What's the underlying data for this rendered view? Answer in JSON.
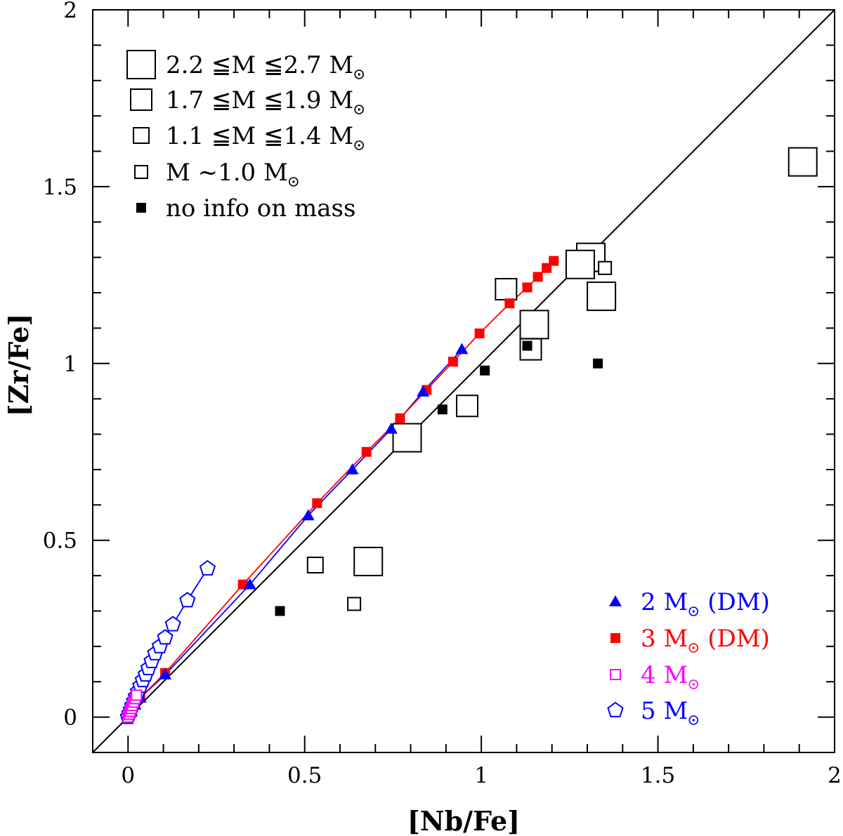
{
  "chart_data": {
    "type": "scatter",
    "xlabel": "[Nb/Fe]",
    "ylabel": "[Zr/Fe]",
    "xlim": [
      -0.1,
      2.0
    ],
    "ylim": [
      -0.1,
      2.0
    ],
    "x_ticks": [
      "0",
      "0.5",
      "1",
      "1.5",
      "2"
    ],
    "y_ticks": [
      "0",
      "0.5",
      "1",
      "1.5",
      "2"
    ],
    "reference_line": {
      "name": "1:1 line",
      "x": [
        -0.1,
        2.0
      ],
      "y": [
        -0.1,
        2.0
      ]
    },
    "observations": [
      {
        "name": "2.2 ≦M ≦2.7 M☉",
        "marker": "open-square-xl",
        "points": [
          [
            1.91,
            1.57
          ],
          [
            1.31,
            1.3
          ],
          [
            1.28,
            1.28
          ],
          [
            1.34,
            1.19
          ],
          [
            1.15,
            1.11
          ],
          [
            0.79,
            0.79
          ],
          [
            0.68,
            0.44
          ]
        ]
      },
      {
        "name": "1.7 ≦M ≦1.9 M☉",
        "marker": "open-square-l",
        "points": [
          [
            1.07,
            1.21
          ],
          [
            1.14,
            1.04
          ],
          [
            0.96,
            0.88
          ]
        ]
      },
      {
        "name": "1.1 ≦M ≦1.4 M☉",
        "marker": "open-square-m",
        "points": [
          [
            0.53,
            0.43
          ]
        ]
      },
      {
        "name": "M ~1.0 M☉",
        "marker": "open-square-s",
        "points": [
          [
            1.35,
            1.27
          ],
          [
            0.64,
            0.32
          ]
        ]
      },
      {
        "name": "no info on mass",
        "marker": "filled-square",
        "points": [
          [
            1.13,
            1.05
          ],
          [
            1.01,
            0.98
          ],
          [
            1.33,
            1.0
          ],
          [
            0.89,
            0.87
          ],
          [
            0.43,
            0.3
          ]
        ]
      }
    ],
    "models": [
      {
        "name": "2 M☉ (DM)",
        "label_main": "2 M",
        "label_tail": "(DM)",
        "color": "#0000ff",
        "marker": "filled-triangle",
        "x": [
          0.0,
          0.01,
          0.02,
          0.035,
          0.105,
          0.345,
          0.51,
          0.635,
          0.745,
          0.835,
          0.945
        ],
        "y": [
          0.0,
          0.015,
          0.035,
          0.055,
          0.12,
          0.375,
          0.57,
          0.7,
          0.815,
          0.92,
          1.04
        ]
      },
      {
        "name": "3 M☉ (DM)",
        "label_main": "3 M",
        "label_tail": "(DM)",
        "color": "#ff0000",
        "marker": "filled-square",
        "x": [
          0.0,
          0.01,
          0.02,
          0.035,
          0.105,
          0.325,
          0.535,
          0.675,
          0.77,
          0.845,
          0.92,
          0.995,
          1.08,
          1.13,
          1.16,
          1.185,
          1.205
        ],
        "y": [
          0.0,
          0.015,
          0.035,
          0.055,
          0.125,
          0.375,
          0.605,
          0.75,
          0.845,
          0.925,
          1.005,
          1.085,
          1.17,
          1.215,
          1.245,
          1.27,
          1.29
        ]
      },
      {
        "name": "4 M☉",
        "label_main": "4 M",
        "label_tail": "",
        "color": "#ff00ff",
        "marker": "open-square",
        "x": [
          0.0,
          0.003,
          0.006,
          0.009,
          0.012,
          0.016,
          0.02,
          0.024
        ],
        "y": [
          0.0,
          0.008,
          0.016,
          0.024,
          0.033,
          0.042,
          0.052,
          0.062
        ]
      },
      {
        "name": "5 M☉",
        "label_main": "5 M",
        "label_tail": "",
        "color": "#0000ff",
        "marker": "open-pentagon",
        "x": [
          0.0,
          0.004,
          0.008,
          0.012,
          0.017,
          0.022,
          0.028,
          0.035,
          0.042,
          0.05,
          0.058,
          0.067,
          0.077,
          0.09,
          0.105,
          0.127,
          0.168,
          0.225
        ],
        "y": [
          0.0,
          0.01,
          0.02,
          0.032,
          0.045,
          0.058,
          0.072,
          0.088,
          0.104,
          0.12,
          0.138,
          0.158,
          0.18,
          0.2,
          0.225,
          0.262,
          0.33,
          0.42
        ]
      }
    ]
  }
}
